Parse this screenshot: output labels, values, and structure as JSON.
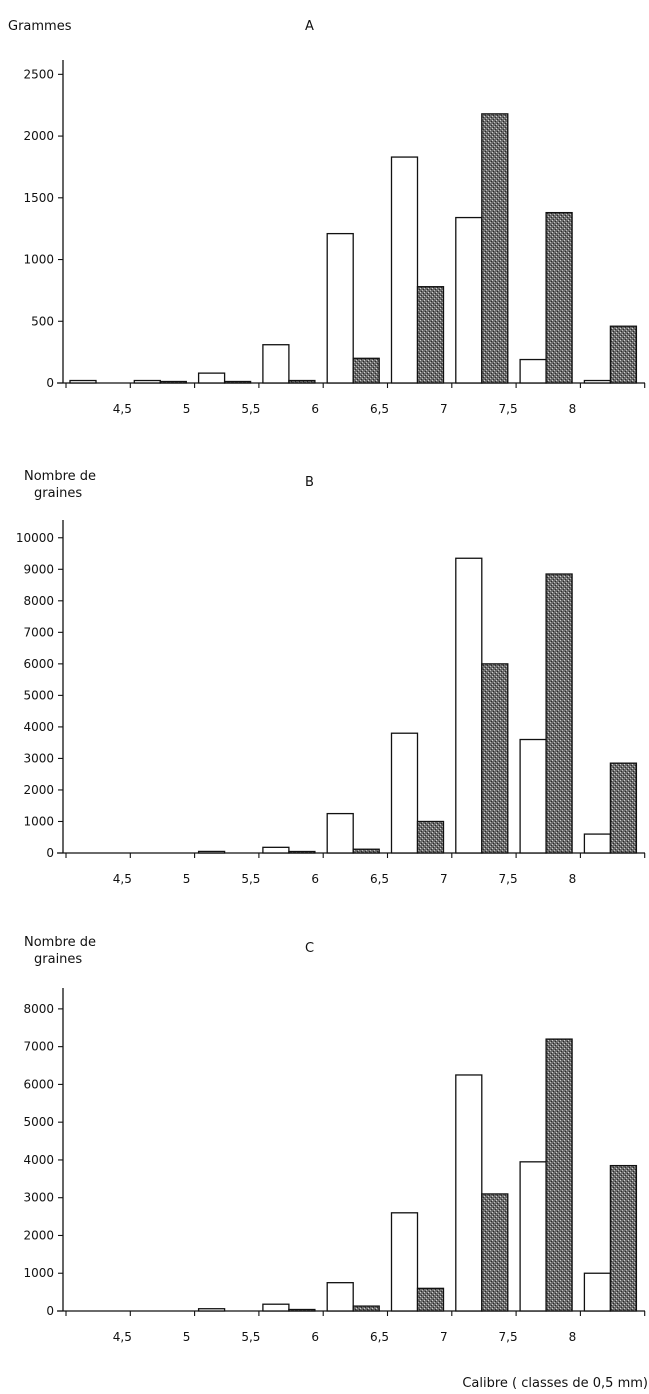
{
  "colors": {
    "open_bar": "#ffffff",
    "stippled_bar": "#5a5a5a",
    "stroke": "#111111"
  },
  "xlabel": "Calibre  ( classes de 0,5 mm)",
  "chart_data": [
    {
      "type": "bar",
      "panel": "A",
      "ylabel": "Grammes",
      "ylim": [
        0,
        2600
      ],
      "yticks": [
        0,
        500,
        1000,
        1500,
        2000,
        2500
      ],
      "x_tick_labels": [
        "4,5",
        "5",
        "5,5",
        "6",
        "6,5",
        "7",
        "7,5",
        "8"
      ],
      "groups": 9,
      "series": [
        {
          "pattern": "open",
          "values": [
            20,
            20,
            80,
            310,
            1210,
            1830,
            1340,
            190,
            20
          ]
        },
        {
          "pattern": "stippled",
          "values": [
            0,
            5,
            10,
            20,
            200,
            780,
            2180,
            1380,
            460
          ]
        }
      ],
      "grid": false
    },
    {
      "type": "bar",
      "panel": "B",
      "ylabel": "Nombre de\ngraines",
      "ylim": [
        0,
        10500
      ],
      "yticks": [
        0,
        1000,
        2000,
        3000,
        4000,
        5000,
        6000,
        7000,
        8000,
        9000,
        10000
      ],
      "x_tick_labels": [
        "4,5",
        "5",
        "5,5",
        "6",
        "6,5",
        "7",
        "7,5",
        "8"
      ],
      "groups": 9,
      "series": [
        {
          "pattern": "open",
          "values": [
            0,
            0,
            50,
            180,
            1250,
            3800,
            9350,
            3600,
            600
          ]
        },
        {
          "pattern": "stippled",
          "values": [
            0,
            0,
            0,
            20,
            120,
            1000,
            6000,
            8850,
            2850
          ]
        }
      ],
      "grid": false
    },
    {
      "type": "bar",
      "panel": "C",
      "ylabel": "Nombre de\ngraines",
      "ylim": [
        0,
        8500
      ],
      "yticks": [
        0,
        1000,
        2000,
        3000,
        4000,
        5000,
        6000,
        7000,
        8000
      ],
      "x_tick_labels": [
        "4,5",
        "5",
        "5,5",
        "6",
        "6,5",
        "7",
        "7,5",
        "8"
      ],
      "groups": 9,
      "series": [
        {
          "pattern": "open",
          "values": [
            0,
            0,
            60,
            180,
            750,
            2600,
            6250,
            3950,
            1000
          ]
        },
        {
          "pattern": "stippled",
          "values": [
            0,
            0,
            0,
            30,
            130,
            600,
            3100,
            7200,
            3850
          ]
        }
      ],
      "grid": false
    }
  ]
}
